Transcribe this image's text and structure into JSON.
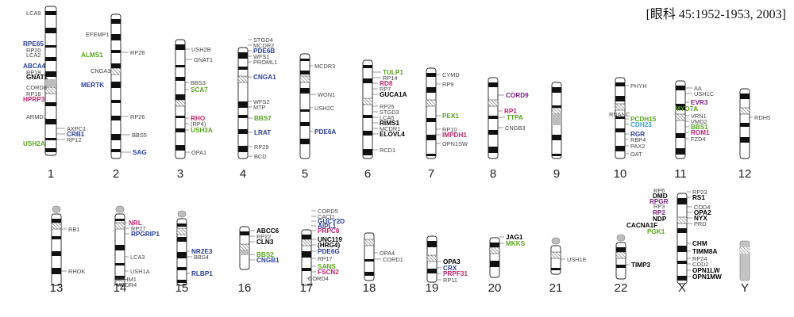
{
  "citation": "[眼科 45:1952-1953, 2003]",
  "colors": {
    "blue": "#2a3f9e",
    "green": "#5aa51e",
    "pink": "#c2246e",
    "purple": "#7b2283",
    "black": "#000000",
    "gray": "#444444",
    "cyan": "#3ba3d6"
  },
  "chromosomes": [
    {
      "id": "1",
      "label": "1",
      "genes": [
        {
          "name": "LCA9",
          "style": "gray"
        },
        {
          "name": "RPE65",
          "style": "blue"
        },
        {
          "name": "RP20",
          "style": "gray"
        },
        {
          "name": "LCA2",
          "style": "gray"
        },
        {
          "name": "ABCA4",
          "style": "blue"
        },
        {
          "name": "RP19",
          "style": "gray"
        },
        {
          "name": "GNAT2",
          "style": "black"
        },
        {
          "name": "CORD8",
          "style": "gray"
        },
        {
          "name": "RP18",
          "style": "gray"
        },
        {
          "name": "HPRP3",
          "style": "pink"
        },
        {
          "name": "ARMD1",
          "style": "gray"
        },
        {
          "name": "AXPC1",
          "style": "gray"
        },
        {
          "name": "CRB1",
          "style": "blue"
        },
        {
          "name": "RP12",
          "style": "gray"
        },
        {
          "name": "USH2A",
          "style": "green"
        }
      ]
    },
    {
      "id": "2",
      "label": "2",
      "genes": [
        {
          "name": "EFEMP1",
          "style": "gray"
        },
        {
          "name": "ALMS1",
          "style": "green"
        },
        {
          "name": "RP28",
          "style": "gray"
        },
        {
          "name": "CNGA3",
          "style": "gray"
        },
        {
          "name": "MERTK",
          "style": "blue"
        },
        {
          "name": "RP26",
          "style": "gray"
        },
        {
          "name": "BBS5",
          "style": "gray"
        },
        {
          "name": "SAG",
          "style": "blue"
        }
      ]
    },
    {
      "id": "3",
      "label": "3",
      "genes": [
        {
          "name": "USH2B",
          "style": "gray"
        },
        {
          "name": "GNAT1",
          "style": "gray"
        },
        {
          "name": "BBS3",
          "style": "gray"
        },
        {
          "name": "SCA7",
          "style": "green"
        },
        {
          "name": "RHO",
          "style": "pink"
        },
        {
          "name": "(RP4)",
          "style": "gray"
        },
        {
          "name": "USH3A",
          "style": "green"
        },
        {
          "name": "OPA1",
          "style": "gray"
        }
      ]
    },
    {
      "id": "4",
      "label": "4",
      "genes": [
        {
          "name": "STGD4",
          "style": "gray"
        },
        {
          "name": "MCDR2",
          "style": "gray"
        },
        {
          "name": "PDE6B",
          "style": "blue"
        },
        {
          "name": "WFS1",
          "style": "gray"
        },
        {
          "name": "PROML1",
          "style": "gray"
        },
        {
          "name": "CNGA1",
          "style": "blue"
        },
        {
          "name": "WFS2",
          "style": "gray"
        },
        {
          "name": "MTP",
          "style": "gray"
        },
        {
          "name": "BBS7",
          "style": "green"
        },
        {
          "name": "LRAT",
          "style": "blue"
        },
        {
          "name": "RP29",
          "style": "gray"
        },
        {
          "name": "BCD",
          "style": "gray"
        }
      ]
    },
    {
      "id": "5",
      "label": "5",
      "genes": [
        {
          "name": "MCDR3",
          "style": "gray"
        },
        {
          "name": "WGN1",
          "style": "gray"
        },
        {
          "name": "USH2C",
          "style": "gray"
        },
        {
          "name": "PDE6A",
          "style": "blue"
        }
      ]
    },
    {
      "id": "6",
      "label": "6",
      "genes": [
        {
          "name": "TULP1",
          "style": "green"
        },
        {
          "name": "RP14",
          "style": "gray"
        },
        {
          "name": "RD8",
          "style": "pink"
        },
        {
          "name": "RP7",
          "style": "gray"
        },
        {
          "name": "GUCA1A",
          "style": "black"
        },
        {
          "name": "RP25",
          "style": "gray"
        },
        {
          "name": "STGD3",
          "style": "gray"
        },
        {
          "name": "LCA5",
          "style": "gray"
        },
        {
          "name": "RIMS1",
          "style": "black"
        },
        {
          "name": "MCDR1",
          "style": "gray"
        },
        {
          "name": "ELOVL4",
          "style": "black"
        },
        {
          "name": "RCD1",
          "style": "gray"
        }
      ]
    },
    {
      "id": "7",
      "label": "7",
      "genes": [
        {
          "name": "CYMD",
          "style": "gray"
        },
        {
          "name": "RP9",
          "style": "gray"
        },
        {
          "name": "PEX1",
          "style": "green"
        },
        {
          "name": "RP10",
          "style": "gray"
        },
        {
          "name": "IMPDH1",
          "style": "pink"
        },
        {
          "name": "OPN1SW",
          "style": "gray"
        }
      ]
    },
    {
      "id": "8",
      "label": "8",
      "genes": [
        {
          "name": "CORD9",
          "style": "purple"
        },
        {
          "name": "RP1",
          "style": "pink"
        },
        {
          "name": "TTPA",
          "style": "green"
        },
        {
          "name": "CNGB3",
          "style": "gray"
        }
      ]
    },
    {
      "id": "9",
      "label": "9",
      "genes": []
    },
    {
      "id": "10",
      "label": "10",
      "genes": [
        {
          "name": "PHYH",
          "style": "gray"
        },
        {
          "name": "RNANC",
          "style": "gray"
        },
        {
          "name": "PCDH15",
          "style": "green"
        },
        {
          "name": "CDH23",
          "style": "cyan"
        },
        {
          "name": "RGR",
          "style": "blue"
        },
        {
          "name": "RBP4",
          "style": "gray"
        },
        {
          "name": "PAX2",
          "style": "gray"
        },
        {
          "name": "OAT",
          "style": "gray"
        }
      ]
    },
    {
      "id": "11",
      "label": "11",
      "genes": [
        {
          "name": "AA",
          "style": "gray"
        },
        {
          "name": "USH1C",
          "style": "gray"
        },
        {
          "name": "EVR3",
          "style": "purple"
        },
        {
          "name": "MYO7A",
          "style": "green"
        },
        {
          "name": "VRN1",
          "style": "gray"
        },
        {
          "name": "VMD2",
          "style": "gray"
        },
        {
          "name": "BBS1",
          "style": "green"
        },
        {
          "name": "ROM1",
          "style": "pink"
        },
        {
          "name": "FZD4",
          "style": "gray"
        }
      ]
    },
    {
      "id": "12",
      "label": "12",
      "genes": [
        {
          "name": "RDH5",
          "style": "gray"
        }
      ]
    },
    {
      "id": "13",
      "label": "13",
      "genes": [
        {
          "name": "RB1",
          "style": "gray"
        },
        {
          "name": "RHOK",
          "style": "gray"
        }
      ]
    },
    {
      "id": "14",
      "label": "14",
      "genes": [
        {
          "name": "NRL",
          "style": "pink"
        },
        {
          "name": "RP27",
          "style": "gray"
        },
        {
          "name": "RPGRIP1",
          "style": "blue"
        },
        {
          "name": "LCA3",
          "style": "gray"
        },
        {
          "name": "USH1A",
          "style": "gray"
        },
        {
          "name": "ACHM1",
          "style": "gray"
        },
        {
          "name": "MCDR4",
          "style": "gray"
        }
      ]
    },
    {
      "id": "15",
      "label": "15",
      "genes": [
        {
          "name": "NR2E3",
          "style": "blue"
        },
        {
          "name": "BBS4",
          "style": "gray"
        },
        {
          "name": "RLBP1",
          "style": "blue"
        }
      ]
    },
    {
      "id": "16",
      "label": "16",
      "genes": [
        {
          "name": "ABCC6",
          "style": "black"
        },
        {
          "name": "RP22",
          "style": "gray"
        },
        {
          "name": "CLN3",
          "style": "black"
        },
        {
          "name": "BBS2",
          "style": "green"
        },
        {
          "name": "CNGB1",
          "style": "blue"
        }
      ]
    },
    {
      "id": "17",
      "label": "17",
      "genes": [
        {
          "name": "CORD5",
          "style": "gray"
        },
        {
          "name": "CACD",
          "style": "gray"
        },
        {
          "name": "GUCY2D",
          "style": "blue"
        },
        {
          "name": "AIPL1",
          "style": "blue"
        },
        {
          "name": "PRPC8",
          "style": "pink"
        },
        {
          "name": "UNC119",
          "style": "black"
        },
        {
          "name": "(HRG4)",
          "style": "black"
        },
        {
          "name": "PDE6G",
          "style": "blue"
        },
        {
          "name": "RP17",
          "style": "gray"
        },
        {
          "name": "SANS",
          "style": "green"
        },
        {
          "name": "FSCN2",
          "style": "pink"
        },
        {
          "name": "CORD4",
          "style": "gray"
        }
      ]
    },
    {
      "id": "18",
      "label": "18",
      "genes": [
        {
          "name": "OPA4",
          "style": "gray"
        },
        {
          "name": "CORD1",
          "style": "gray"
        }
      ]
    },
    {
      "id": "19",
      "label": "19",
      "genes": [
        {
          "name": "OPA3",
          "style": "black"
        },
        {
          "name": "CRX",
          "style": "blue"
        },
        {
          "name": "PRPF31",
          "style": "pink"
        },
        {
          "name": "RP11",
          "style": "gray"
        }
      ]
    },
    {
      "id": "20",
      "label": "20",
      "genes": [
        {
          "name": "JAG1",
          "style": "black"
        },
        {
          "name": "MKKS",
          "style": "green"
        }
      ]
    },
    {
      "id": "21",
      "label": "21",
      "genes": [
        {
          "name": "USH1E",
          "style": "gray"
        }
      ]
    },
    {
      "id": "22",
      "label": "22",
      "genes": [
        {
          "name": "TIMP3",
          "style": "black"
        }
      ]
    },
    {
      "id": "X",
      "label": "X",
      "genes": [
        {
          "name": "RP6",
          "style": "gray"
        },
        {
          "name": "DMD",
          "style": "black"
        },
        {
          "name": "RP3",
          "style": "gray"
        },
        {
          "name": "RPGR",
          "style": "purple"
        },
        {
          "name": "RP2",
          "style": "purple"
        },
        {
          "name": "NDP",
          "style": "black"
        },
        {
          "name": "CACNA1F",
          "style": "black"
        },
        {
          "name": "PGK1",
          "style": "green"
        },
        {
          "name": "RP23",
          "style": "gray"
        },
        {
          "name": "RS1",
          "style": "black"
        },
        {
          "name": "COD4",
          "style": "gray"
        },
        {
          "name": "OPA2",
          "style": "black"
        },
        {
          "name": "NYX",
          "style": "black"
        },
        {
          "name": "PRD",
          "style": "gray"
        },
        {
          "name": "CHM",
          "style": "black"
        },
        {
          "name": "TIMM8A",
          "style": "black"
        },
        {
          "name": "RP24",
          "style": "gray"
        },
        {
          "name": "COD2",
          "style": "gray"
        },
        {
          "name": "OPN1LW",
          "style": "black"
        },
        {
          "name": "OPN1MW",
          "style": "black"
        }
      ]
    },
    {
      "id": "Y",
      "label": "Y",
      "genes": []
    }
  ]
}
